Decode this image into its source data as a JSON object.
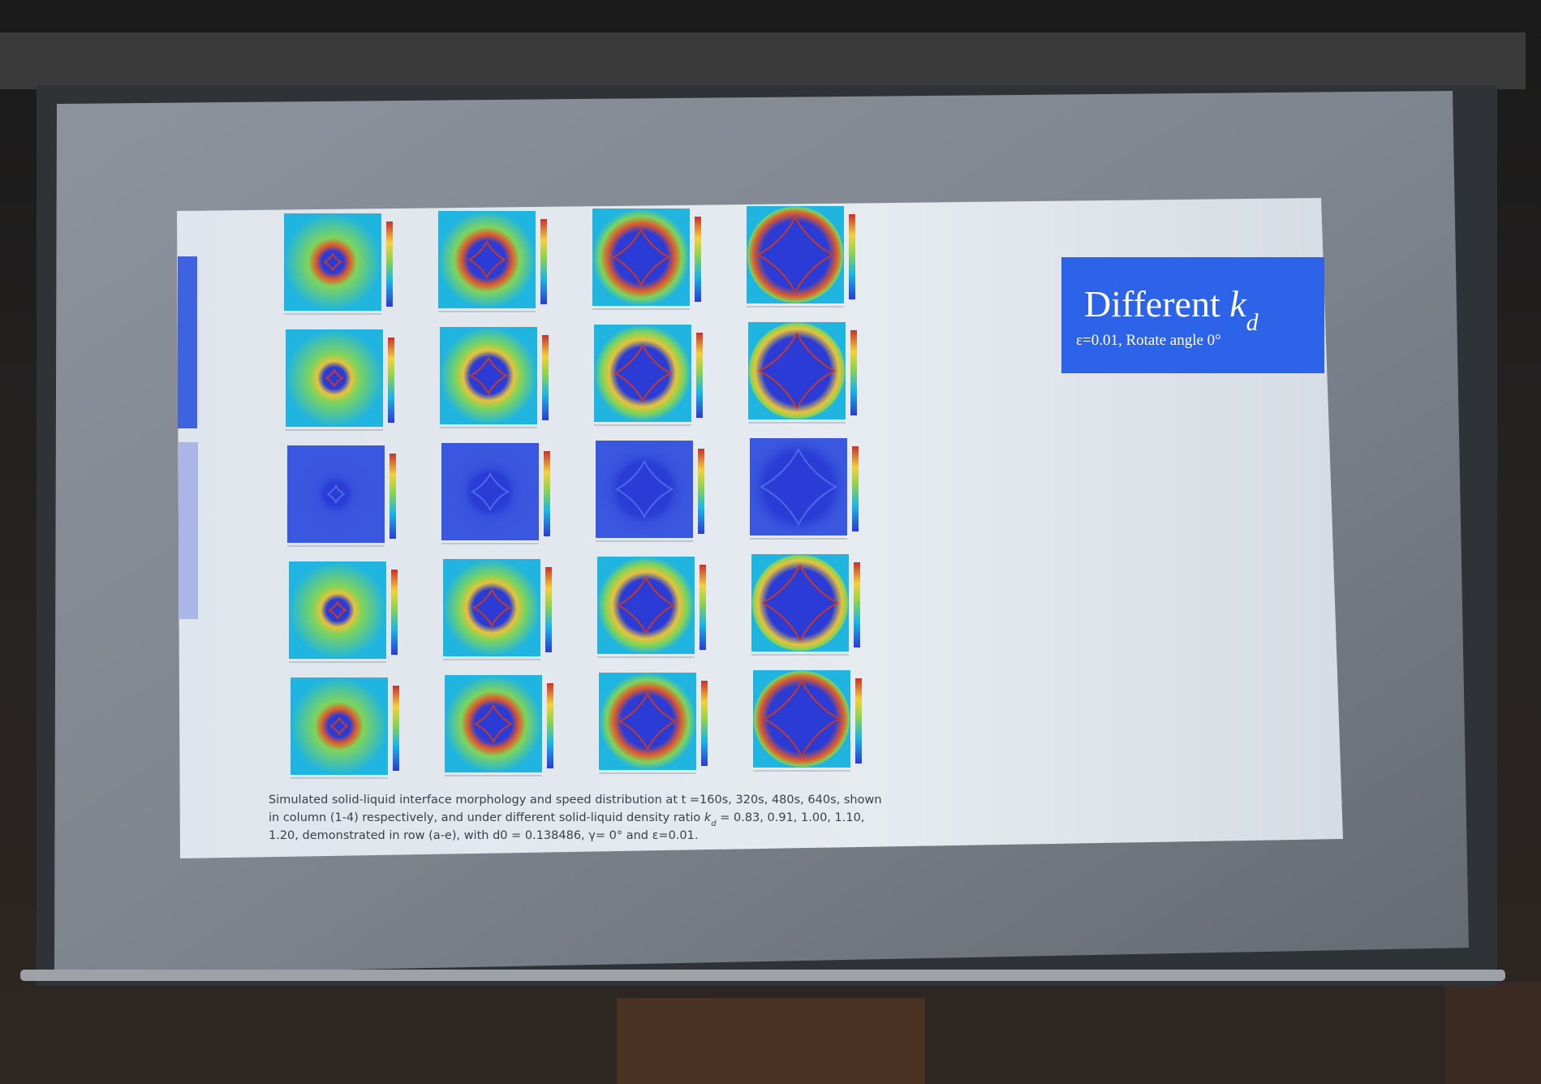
{
  "slide": {
    "title": {
      "word": "Different",
      "symbol": "k",
      "subscript": "d"
    },
    "subtitle": "ε=0.01, Rotate angle 0°",
    "caption": {
      "line1": "Simulated solid-liquid interface morphology and speed distribution at t =160s, 320s, 480s, 640s, shown",
      "line2_before": "in column (1-4) respectively, and under different solid-liquid density ratio",
      "kd_symbol": "k",
      "kd_subscript": "d",
      "line2_after": "= 0.83, 0.91, 1.00, 1.10,",
      "line3": "1.20, demonstrated in row (a-e), with d0 = 0.138486, γ= 0° and ε=0.01."
    }
  }
}
